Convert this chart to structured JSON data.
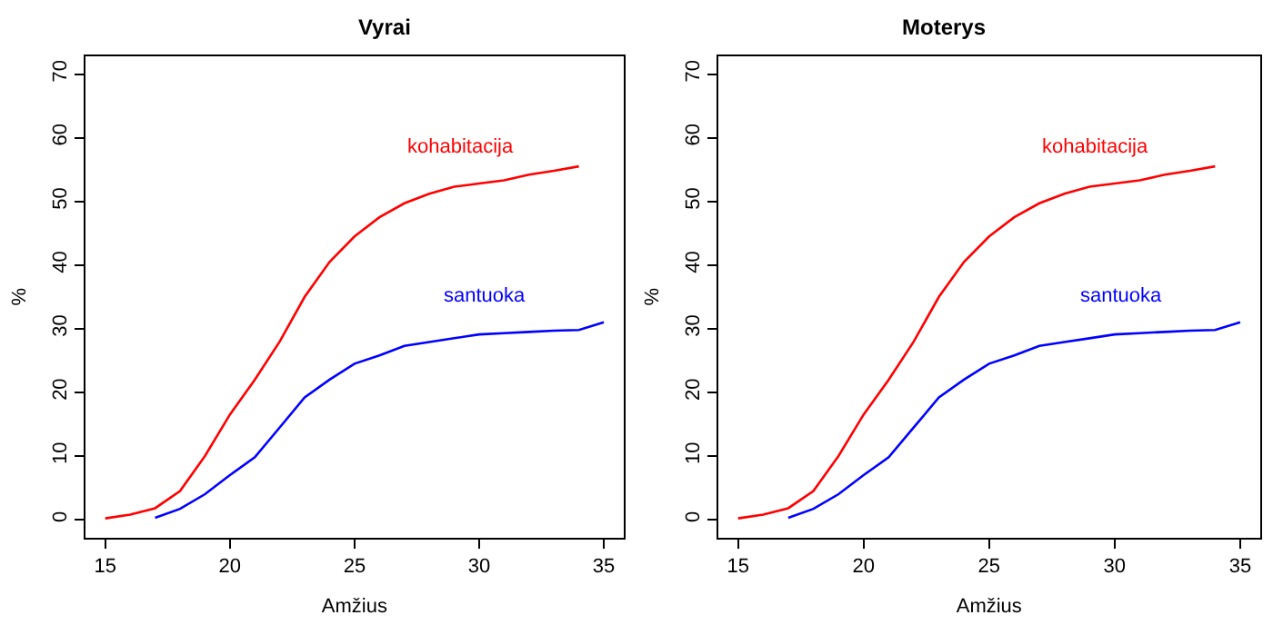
{
  "chart_data": [
    {
      "type": "line",
      "title": "Vyrai",
      "xlabel": "Amžius",
      "ylabel": "%",
      "xlim": [
        14.2,
        35.8
      ],
      "xticks": [
        15,
        20,
        25,
        30,
        35
      ],
      "ylim": [
        -2.8,
        72.8
      ],
      "yticks": [
        0,
        10,
        20,
        30,
        40,
        50,
        60,
        70
      ],
      "legend": false,
      "marker": "none",
      "line_style": "solid",
      "series": [
        {
          "name": "kohabitacija",
          "color": "#ff0000",
          "x": [
            15,
            16,
            17,
            18,
            19,
            20,
            21,
            22,
            23,
            24,
            25,
            26,
            27,
            28,
            29,
            30,
            31,
            32,
            33,
            34
          ],
          "values": [
            0.2,
            0.8,
            1.8,
            4.5,
            10,
            16.5,
            22,
            28,
            35,
            40.5,
            44.5,
            47.5,
            49.7,
            51.2,
            52.3,
            52.8,
            53.3,
            54.2,
            54.8,
            55.5
          ]
        },
        {
          "name": "santuoka",
          "color": "#0000ff",
          "x": [
            17,
            18,
            19,
            20,
            21,
            22,
            23,
            24,
            25,
            26,
            27,
            28,
            29,
            30,
            31,
            32,
            33,
            34,
            35
          ],
          "values": [
            0.3,
            1.7,
            4,
            7,
            9.8,
            14.5,
            19.2,
            22,
            24.5,
            25.8,
            27.3,
            27.9,
            28.5,
            29.1,
            29.3,
            29.5,
            29.7,
            29.8,
            31
          ]
        }
      ]
    },
    {
      "type": "line",
      "title": "Moterys",
      "xlabel": "Amžius",
      "ylabel": "%",
      "xlim": [
        14.2,
        35.8
      ],
      "xticks": [
        15,
        20,
        25,
        30,
        35
      ],
      "ylim": [
        -2.8,
        72.8
      ],
      "yticks": [
        0,
        10,
        20,
        30,
        40,
        50,
        60,
        70
      ],
      "legend": false,
      "marker": "none",
      "line_style": "solid",
      "series": [
        {
          "name": "kohabitacija",
          "color": "#ff0000",
          "x": [
            15,
            16,
            17,
            18,
            19,
            20,
            21,
            22,
            23,
            24,
            25,
            26,
            27,
            28,
            29,
            30,
            31,
            32,
            33,
            34
          ],
          "values": [
            0.2,
            0.8,
            1.8,
            4.5,
            10,
            16.5,
            22,
            28,
            35,
            40.5,
            44.5,
            47.5,
            49.7,
            51.2,
            52.3,
            52.8,
            53.3,
            54.2,
            54.8,
            55.5
          ]
        },
        {
          "name": "santuoka",
          "color": "#0000ff",
          "x": [
            17,
            18,
            19,
            20,
            21,
            22,
            23,
            24,
            25,
            26,
            27,
            28,
            29,
            30,
            31,
            32,
            33,
            34,
            35
          ],
          "values": [
            0.3,
            1.7,
            4,
            7,
            9.8,
            14.5,
            19.2,
            22,
            24.5,
            25.8,
            27.3,
            27.9,
            28.5,
            29.1,
            29.3,
            29.5,
            29.7,
            29.8,
            31
          ]
        }
      ]
    }
  ]
}
